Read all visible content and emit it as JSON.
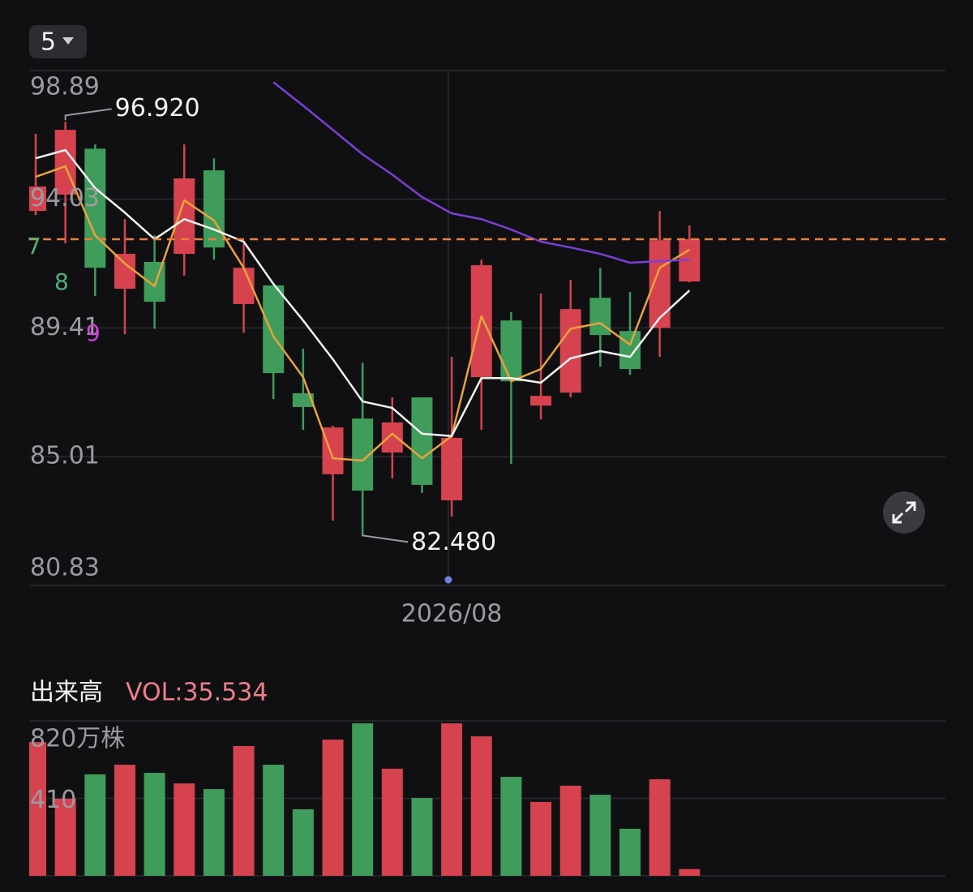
{
  "period_selector": "5",
  "chart_data": [
    {
      "type": "candlestick",
      "categories": [
        null,
        null,
        null,
        null,
        null,
        null,
        null,
        null,
        null,
        null,
        null,
        null,
        null,
        null,
        "2026/08",
        null,
        null,
        null,
        null,
        null,
        null,
        null,
        null
      ],
      "open": [
        93.6,
        94.2,
        95.91,
        90.79,
        91.75,
        92.04,
        95.1,
        90.25,
        90.91,
        87.15,
        84.43,
        86.29,
        85.15,
        87.01,
        83.57,
        87.7,
        89.67,
        86.73,
        87.17,
        90.47,
        89.3,
        89.41,
        91.05
      ],
      "high": [
        96.47,
        96.92,
        96.07,
        93.3,
        92.71,
        96.07,
        95.55,
        92.42,
        90.91,
        88.68,
        86.05,
        88.2,
        87.01,
        87.01,
        88.4,
        91.83,
        89.96,
        90.62,
        91.11,
        91.54,
        90.67,
        93.6,
        93.07
      ],
      "low": [
        93.45,
        92.42,
        90.53,
        89.19,
        89.38,
        91.26,
        91.83,
        89.24,
        86.95,
        85.91,
        82.91,
        82.48,
        84.29,
        83.81,
        83.04,
        85.91,
        84.77,
        86.26,
        87.01,
        88.06,
        87.78,
        88.4,
        91.02
      ],
      "close": [
        94.5,
        96.62,
        91.54,
        92.04,
        90.33,
        94.8,
        92.27,
        91.54,
        87.84,
        86.68,
        85.99,
        83.89,
        86.16,
        84.08,
        85.64,
        91.63,
        87.56,
        87.06,
        90.07,
        89.16,
        87.98,
        92.53,
        92.57
      ],
      "up_color": "#d6434f",
      "down_color": "#3f9c5b",
      "series": [
        {
          "color": "#e9a23b",
          "values": [
            94.86,
            95.25,
            92.71,
            91.69,
            90.88,
            93.99,
            93.25,
            91.54,
            89.11,
            87.7,
            84.96,
            84.88,
            85.78,
            84.96,
            85.7,
            89.82,
            87.56,
            87.98,
            89.38,
            89.58,
            88.82,
            91.54,
            92.19
          ]
        },
        {
          "color": "#f2f2f2",
          "values": [
            95.55,
            95.86,
            94.44,
            93.54,
            92.57,
            93.3,
            92.92,
            92.48,
            90.96,
            89.67,
            88.32,
            86.87,
            86.65,
            85.78,
            85.7,
            87.67,
            87.67,
            87.51,
            88.35,
            88.6,
            88.4,
            89.76,
            90.73
          ]
        },
        {
          "color": "#7a3fd8",
          "values": [
            null,
            null,
            null,
            null,
            null,
            null,
            null,
            null,
            98.44,
            97.54,
            96.62,
            95.7,
            94.94,
            94.11,
            93.51,
            93.3,
            92.92,
            92.48,
            92.27,
            92.04,
            91.72,
            91.78,
            91.83
          ]
        }
      ],
      "ylim": [
        80.83,
        98.89
      ],
      "yticks": [
        98.89,
        94.03,
        89.41,
        85.01,
        80.83
      ],
      "log_scale": true,
      "grid": true,
      "last_price_line": true,
      "last_price_color": "#e8803a",
      "max_label": "96.920",
      "min_label": "82.480",
      "partial_labels": [
        {
          "text": "7",
          "color": "#4fb07a"
        },
        {
          "text": "8",
          "color": "#4fb07a"
        },
        {
          "text": "9",
          "color": "#d03fd8"
        }
      ]
    },
    {
      "type": "bar",
      "title": "出来高",
      "current_label": "VOL:35.534",
      "current_label_color": "#ec7f89",
      "values": [
        708,
        408,
        537,
        588,
        545,
        489,
        459,
        687,
        588,
        352,
        721,
        807,
        567,
        412,
        807,
        738,
        524,
        391,
        477,
        429,
        249,
        511,
        35.534
      ],
      "ylim": [
        0,
        820
      ],
      "yticks": [
        {
          "value": 820,
          "label": "820万株"
        },
        410
      ],
      "grid": true
    }
  ]
}
